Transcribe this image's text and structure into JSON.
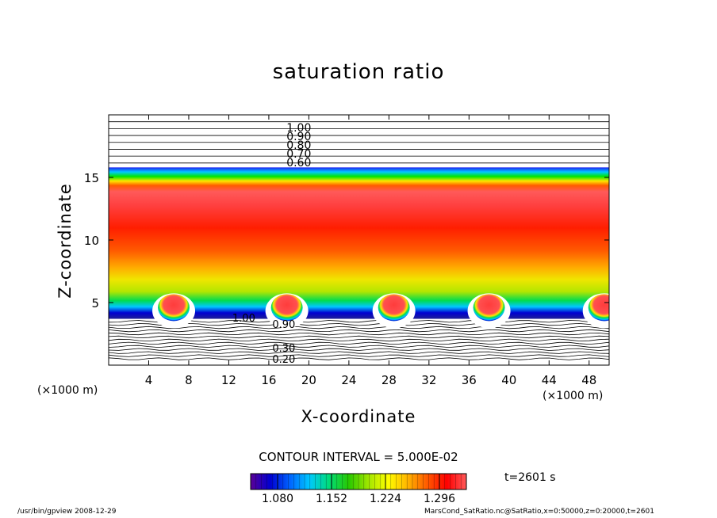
{
  "window": {
    "footer_left": "/usr/bin/gpview  2008-12-29",
    "footer_right": "MarsCond_SatRatio.nc@SatRatio,x=0:50000,z=0:20000,t=2601"
  },
  "chart_data": {
    "type": "contour",
    "title": "saturation ratio",
    "xlabel": "X-coordinate",
    "ylabel": "Z-coordinate",
    "x_unit_label": "(×1000 m)",
    "x_unit_label_right": "(×1000 m)",
    "xlim": [
      0,
      50
    ],
    "ylim": [
      0,
      20
    ],
    "x_ticks": [
      4,
      8,
      12,
      16,
      20,
      24,
      28,
      32,
      36,
      40,
      44,
      48
    ],
    "y_ticks": [
      5,
      10,
      15
    ],
    "contour_interval": "CONTOUR INTERVAL = 5.000E-02",
    "time_label": "t=2601 s",
    "colorbar": {
      "ticks": [
        "1.080",
        "1.152",
        "1.224",
        "1.296"
      ],
      "range": [
        1.044,
        1.332
      ],
      "colors": [
        "#5a0096",
        "#0000d2",
        "#0064ff",
        "#00c8ff",
        "#00dc78",
        "#28c800",
        "#a0e600",
        "#ffff00",
        "#ffb400",
        "#ff5a00",
        "#ff0000",
        "#ff5a5a"
      ]
    },
    "upper_contour_labels": [
      "0.60",
      "0.70",
      "0.80",
      "0.90",
      "1.00"
    ],
    "upper_contour_z": [
      16.2,
      16.9,
      17.6,
      18.3,
      19.0
    ],
    "lower_contour_labels": [
      "1.00",
      "0.90",
      "0.30",
      "0.20"
    ],
    "bubbles_x": [
      6.5,
      17.8,
      28.5,
      38.0,
      49.5
    ],
    "cloud_top_z": 15.8,
    "cloud_base_z": 3.7
  }
}
